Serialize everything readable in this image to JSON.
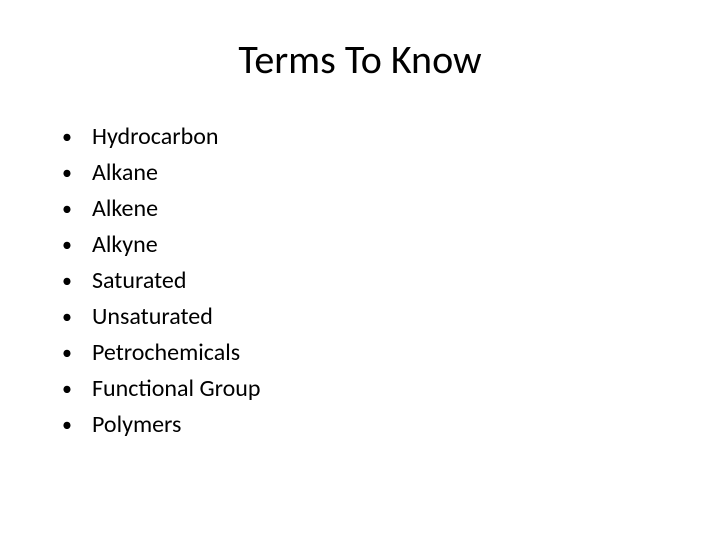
{
  "slide": {
    "title": "Terms To Know",
    "bullets": [
      "Hydrocarbon",
      "Alkane",
      "Alkene",
      "Alkyne",
      "Saturated",
      "Unsaturated",
      "Petrochemicals",
      "Functional Group",
      "Polymers"
    ]
  },
  "style": {
    "background_color": "#ffffff",
    "text_color": "#000000",
    "title_fontsize": 40,
    "bullet_fontsize": 24,
    "font_family": "Calibri"
  }
}
